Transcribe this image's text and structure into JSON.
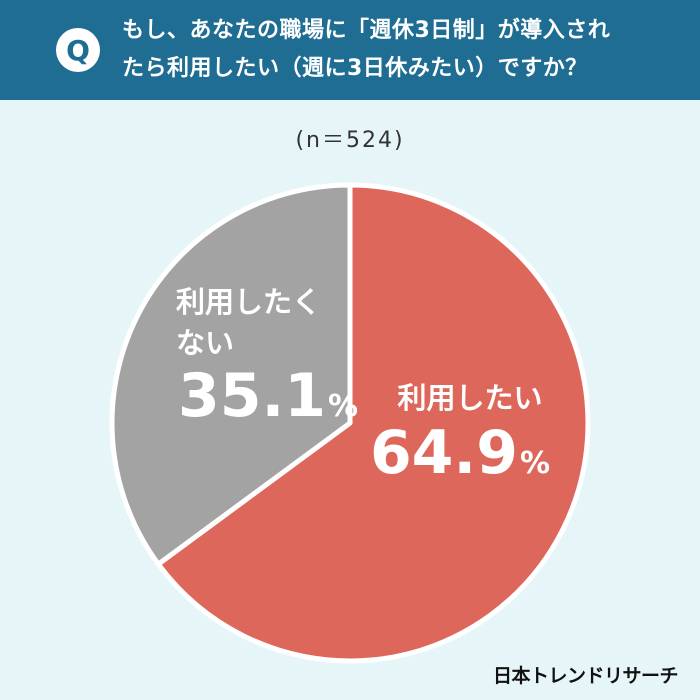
{
  "question": {
    "badge": "Q",
    "line1": "もし、あなたの職場に「週休3日制」が導入され",
    "line2": "たら利用したい（週に3日休みたい）ですか？"
  },
  "sample_size": "(n＝524)",
  "brand": "日本トレンドリサーチ",
  "colors": {
    "header": "#1f6d93",
    "background": "#e6f6f8",
    "slice_use": "#de675b",
    "slice_not": "#a3a3a3"
  },
  "chart_data": {
    "type": "pie",
    "title": "",
    "start_angle": "12 o'clock, clockwise",
    "slices": [
      {
        "label": "利用したい",
        "value": 64.9,
        "value_text": "64.9",
        "unit": "%",
        "color": "#de675b"
      },
      {
        "label": "利用したくない",
        "value": 35.1,
        "value_text": "35.1",
        "unit": "%",
        "color": "#a3a3a3"
      }
    ]
  }
}
